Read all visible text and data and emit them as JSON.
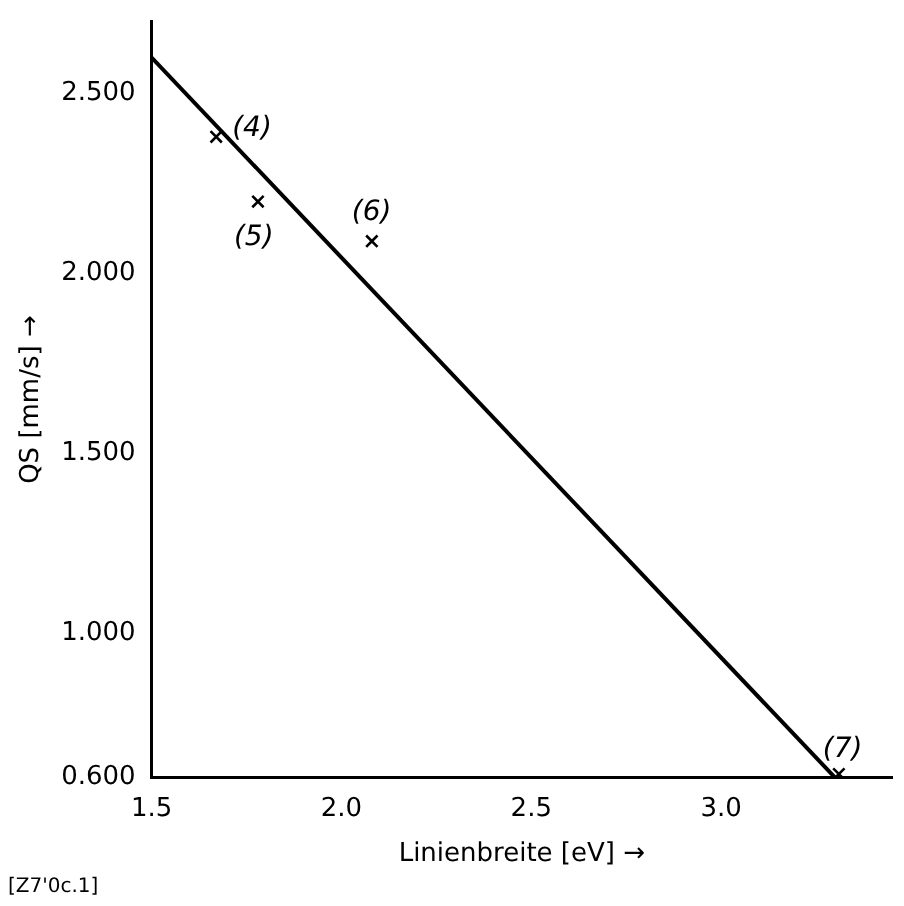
{
  "chart_data": {
    "type": "scatter",
    "xlabel": "Linienbreite [eV] →",
    "ylabel": "QS [mm/s] →",
    "xlim": [
      1.5,
      3.45
    ],
    "ylim": [
      0.6,
      2.7
    ],
    "xticks": [
      1.5,
      {
        "value": 2,
        "label": "2.0"
      },
      2.5,
      {
        "value": 3,
        "label": "3.0"
      }
    ],
    "yticks": [
      {
        "value": 0.6,
        "label": "0.600"
      },
      {
        "value": 1,
        "label": "1.000"
      },
      {
        "value": 1.5,
        "label": "1.500"
      },
      {
        "value": 2,
        "label": "2.000"
      },
      {
        "value": 2.5,
        "label": "2.500"
      }
    ],
    "grid": false,
    "legend": false,
    "marker": "cross",
    "series": [
      {
        "type": "scatter",
        "color": "#000000",
        "x": [
          1.67,
          1.78,
          2.08,
          3.31
        ],
        "values": [
          2.38,
          2.2,
          2.09,
          0.61
        ]
      },
      {
        "type": "line",
        "color": "#000000",
        "x": [
          1.5,
          3.3
        ],
        "values": [
          2.6,
          0.6
        ],
        "marker": "none",
        "line_style": "solid"
      }
    ],
    "annotations": [
      {
        "text": "(4)",
        "x": 1.67,
        "y": 2.38
      },
      {
        "text": "(5)",
        "x": 1.78,
        "y": 2.2
      },
      {
        "text": "(6)",
        "x": 2.08,
        "y": 2.09
      },
      {
        "text": "(7)",
        "x": 3.31,
        "y": 0.61
      },
      "[Z7'0c.1]"
    ]
  }
}
